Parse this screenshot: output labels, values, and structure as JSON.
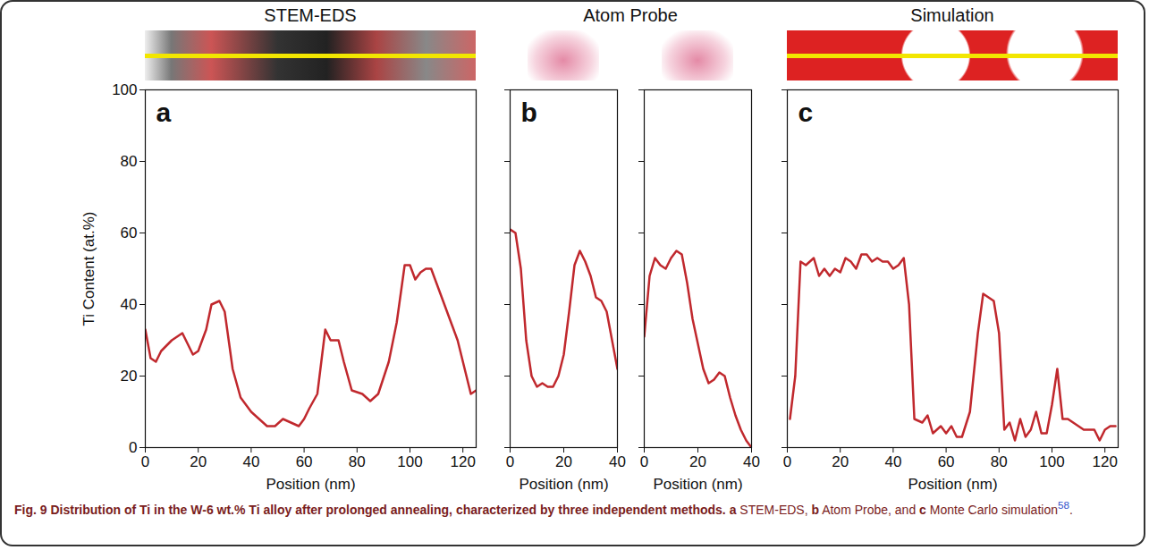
{
  "chart_data": [
    {
      "type": "line",
      "title": "STEM-EDS",
      "panel": "a",
      "xlabel": "Position (nm)",
      "ylabel": "Ti Content (at.%)",
      "xlim": [
        0,
        125
      ],
      "xticks": [
        0,
        20,
        40,
        60,
        80,
        100,
        120
      ],
      "ylim": [
        0,
        100
      ],
      "yticks": [
        0,
        20,
        40,
        60,
        80,
        100
      ],
      "color": "#c0282d",
      "x": [
        0,
        2,
        4,
        6,
        10,
        14,
        16,
        18,
        20,
        23,
        25,
        28,
        30,
        33,
        36,
        40,
        43,
        46,
        49,
        52,
        55,
        58,
        60,
        62,
        65,
        68,
        70,
        73,
        75,
        78,
        82,
        85,
        88,
        92,
        95,
        98,
        100,
        102,
        104,
        106,
        108,
        112,
        116,
        118,
        121,
        123,
        125
      ],
      "values": [
        33,
        25,
        24,
        27,
        30,
        32,
        29,
        26,
        27,
        33,
        40,
        41,
        38,
        22,
        14,
        10,
        8,
        6,
        6,
        8,
        7,
        6,
        8,
        11,
        15,
        33,
        30,
        30,
        24,
        16,
        15,
        13,
        15,
        24,
        35,
        51,
        51,
        47,
        49,
        50,
        50,
        42,
        34,
        30,
        21,
        15,
        16
      ]
    },
    {
      "type": "line",
      "title": "Atom Probe",
      "panel": "b",
      "xlabel": "Position (nm)",
      "tick_labels": "x",
      "xlim": [
        0,
        40
      ],
      "xticks": [
        0,
        20,
        40
      ],
      "ylim": [
        0,
        100
      ],
      "yticks": [
        0,
        20,
        40,
        60,
        80,
        100
      ],
      "color": "#c0282d",
      "x": [
        0,
        2,
        4,
        6,
        8,
        10,
        12,
        14,
        16,
        18,
        20,
        22,
        24,
        26,
        28,
        30,
        32,
        34,
        36,
        38,
        40
      ],
      "values": [
        61,
        60,
        50,
        30,
        20,
        17,
        18,
        17,
        17,
        20,
        26,
        38,
        51,
        55,
        52,
        48,
        42,
        41,
        38,
        30,
        22
      ]
    },
    {
      "type": "line",
      "xlabel": "Position (nm)",
      "tick_labels": "x",
      "xlim": [
        0,
        40
      ],
      "xticks": [
        0,
        20,
        40
      ],
      "ylim": [
        0,
        100
      ],
      "yticks": [
        0,
        20,
        40,
        60,
        80,
        100
      ],
      "color": "#c0282d",
      "x": [
        0,
        2,
        4,
        6,
        8,
        10,
        12,
        14,
        16,
        18,
        20,
        22,
        24,
        26,
        28,
        30,
        32,
        34,
        36,
        38,
        40
      ],
      "values": [
        31,
        48,
        53,
        51,
        50,
        53,
        55,
        54,
        46,
        36,
        29,
        22,
        18,
        19,
        21,
        20,
        14,
        9,
        5,
        2,
        0
      ]
    },
    {
      "type": "line",
      "title": "Simulation",
      "panel": "c",
      "xlabel": "Position (nm)",
      "tick_labels": "x",
      "xlim": [
        0,
        125
      ],
      "xticks": [
        0,
        20,
        40,
        60,
        80,
        100,
        120
      ],
      "ylim": [
        0,
        100
      ],
      "yticks": [
        0,
        20,
        40,
        60,
        80,
        100
      ],
      "color": "#c0282d",
      "x": [
        1,
        3,
        5,
        7,
        10,
        12,
        14,
        16,
        18,
        20,
        22,
        24,
        26,
        28,
        30,
        32,
        34,
        36,
        38,
        40,
        42,
        44,
        46,
        48,
        51,
        53,
        55,
        58,
        60,
        62,
        64,
        66,
        69,
        72,
        74,
        76,
        78,
        80,
        82,
        84,
        86,
        88,
        90,
        92,
        94,
        96,
        98,
        100,
        102,
        104,
        106,
        108,
        110,
        112,
        114,
        116,
        118,
        120,
        122,
        124
      ],
      "values": [
        8,
        20,
        52,
        51,
        53,
        48,
        50,
        48,
        50,
        49,
        53,
        52,
        50,
        54,
        54,
        52,
        53,
        52,
        52,
        50,
        51,
        53,
        40,
        8,
        7,
        9,
        4,
        6,
        4,
        6,
        3,
        3,
        10,
        32,
        43,
        42,
        41,
        32,
        5,
        7,
        2,
        8,
        3,
        5,
        10,
        4,
        4,
        12,
        22,
        8,
        8,
        7,
        6,
        5,
        5,
        5,
        2,
        5,
        6,
        6
      ]
    }
  ],
  "caption": {
    "heading": "Fig. 9 Distribution of Ti in the W-6 wt.% Ti alloy after prolonged annealing, characterized by three independent methods.",
    "body": [
      {
        "letter": "a",
        "text": " STEM-EDS, "
      },
      {
        "letter": "b",
        "text": " Atom Probe, and "
      },
      {
        "letter": "c",
        "text": " Monte Carlo simulation"
      }
    ],
    "reference": "58",
    "end": "."
  }
}
